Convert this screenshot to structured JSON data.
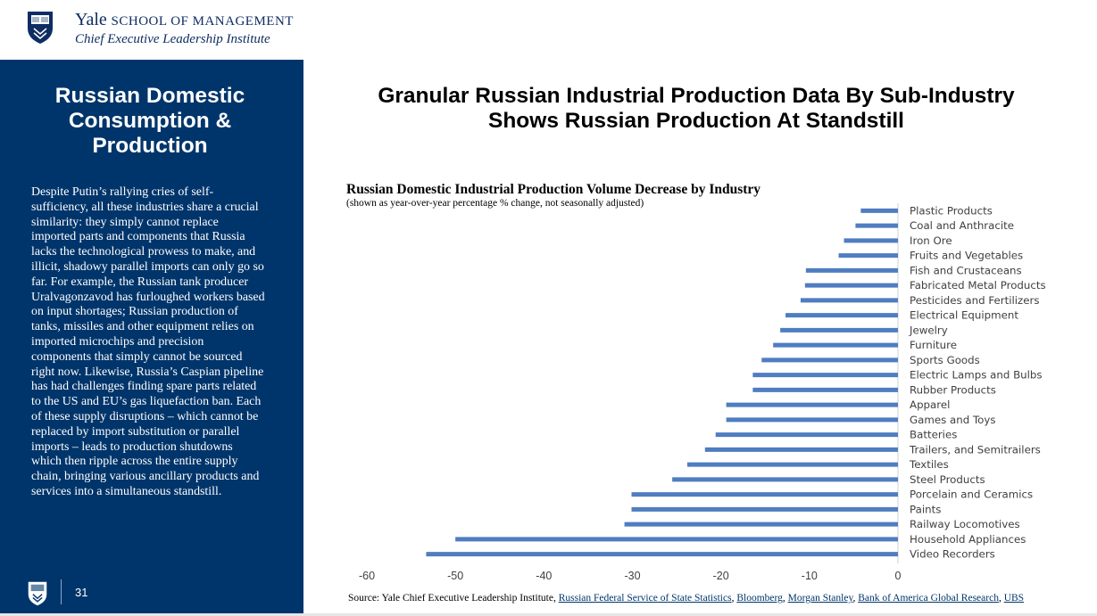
{
  "header": {
    "yale": "Yale",
    "school": "SCHOOL OF MANAGEMENT",
    "institute": "Chief Executive Leadership Institute"
  },
  "sidebar": {
    "title": "Russian Domestic Consumption & Production",
    "body": "Despite Putin’s rallying cries of self-sufficiency, all these industries share a crucial similarity: they simply cannot replace imported parts and components that Russia lacks the technological prowess to make, and illicit, shadowy parallel imports can only go so far. For example, the Russian tank producer Uralvagonzavod has furloughed workers based on input shortages; Russian production of tanks, missiles and other equipment relies on imported microchips and precision components that simply cannot be sourced right now. Likewise, Russia’s Caspian pipeline has had challenges finding spare parts related to the US and EU’s gas liquefaction ban. Each of these supply disruptions – which cannot be replaced by import substitution or parallel imports – leads to production shutdowns which then ripple across the entire supply chain, bringing various ancillary products and services into a simultaneous standstill.",
    "page_number": "31"
  },
  "main": {
    "title_line1": "Granular Russian Industrial Production Data By Sub-Industry",
    "title_line2": "Shows Russian Production At Standstill"
  },
  "chart_data": {
    "type": "bar",
    "orientation": "horizontal",
    "title": "Russian Domestic Industrial Production Volume Decrease by Industry",
    "subtitle": "(shown as year-over-year percentage % change, not seasonally adjusted)",
    "categories": [
      "Plastic Products",
      "Coal and Anthracite",
      "Iron Ore",
      "Fruits and Vegetables",
      "Fish and Crustaceans",
      "Fabricated Metal Products",
      "Pesticides and Fertilizers",
      "Electrical Equipment",
      "Jewelry",
      "Furniture",
      "Sports Goods",
      "Electric Lamps and Bulbs",
      "Rubber Products",
      "Apparel",
      "Games and Toys",
      "Batteries",
      "Trailers, and Semitrailers",
      "Textiles",
      "Steel Products",
      "Porcelain and Ceramics",
      "Paints",
      "Railway Locomotives",
      "Household Appliances",
      "Video Recorders"
    ],
    "values": [
      -4.2,
      -4.8,
      -6.1,
      -6.7,
      -10.4,
      -10.5,
      -11.0,
      -12.7,
      -13.3,
      -14.1,
      -15.4,
      -16.4,
      -16.4,
      -19.4,
      -19.4,
      -20.6,
      -21.8,
      -23.8,
      -25.5,
      -30.1,
      -30.1,
      -30.9,
      -50.0,
      -53.3
    ],
    "xticks": [
      "-60",
      "-50",
      "-40",
      "-30",
      "-20",
      "-10",
      "0"
    ],
    "xlim": [
      -60,
      0
    ],
    "color": "#4f7dc0"
  },
  "source": {
    "prefix": "Source: Yale Chief Executive Leadership Institute, ",
    "s1": "Russian Federal Service of State Statistics",
    "s2": "Bloomberg",
    "s3": "Morgan Stanley",
    "s4": "Bank of America Global Research",
    "s5": "UBS",
    "sep": ", "
  },
  "colors": {
    "navy": "#00356b",
    "bar": "#4f7dc0"
  }
}
